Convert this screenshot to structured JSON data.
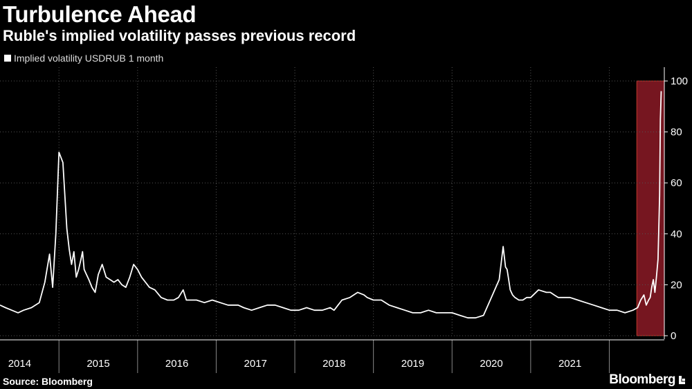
{
  "header": {
    "title": "Turbulence Ahead",
    "subtitle": "Ruble's implied volatility passes previous record"
  },
  "footer": {
    "source": "Source: Bloomberg",
    "brand": "Bloomberg"
  },
  "colors": {
    "background": "#000000",
    "line": "#ffffff",
    "highlight": "#8b1a26",
    "grid": "#555555"
  },
  "chart_data": {
    "type": "line",
    "legend": "Implied volatility USDRUB 1 month",
    "legend_position": "top-left",
    "y_axis_position": "right",
    "ylim": [
      0,
      100
    ],
    "yticks": [
      0,
      20,
      40,
      60,
      80,
      100
    ],
    "xlim": [
      2013.75,
      2022.2
    ],
    "xticks": [
      {
        "label": "2014",
        "x": 2014
      },
      {
        "label": "2015",
        "x": 2015
      },
      {
        "label": "2016",
        "x": 2016
      },
      {
        "label": "2017",
        "x": 2017
      },
      {
        "label": "2018",
        "x": 2018
      },
      {
        "label": "2019",
        "x": 2019
      },
      {
        "label": "2020",
        "x": 2020
      },
      {
        "label": "2021",
        "x": 2021
      }
    ],
    "grid": true,
    "highlight_range": [
      2021.85,
      2022.2
    ],
    "series": [
      {
        "name": "Implied volatility USDRUB 1 month",
        "x": [
          2013.75,
          2013.82,
          2013.9,
          2013.98,
          2014.05,
          2014.15,
          2014.25,
          2014.32,
          2014.38,
          2014.42,
          2014.46,
          2014.5,
          2014.55,
          2014.6,
          2014.63,
          2014.66,
          2014.69,
          2014.72,
          2014.75,
          2014.78,
          2014.8,
          2014.82,
          2014.85,
          2014.88,
          2014.92,
          2014.96,
          2015.0,
          2015.05,
          2015.1,
          2015.15,
          2015.2,
          2015.25,
          2015.3,
          2015.35,
          2015.4,
          2015.45,
          2015.5,
          2015.55,
          2015.6,
          2015.65,
          2015.72,
          2015.8,
          2015.88,
          2015.96,
          2016.02,
          2016.08,
          2016.12,
          2016.18,
          2016.25,
          2016.35,
          2016.45,
          2016.55,
          2016.65,
          2016.72,
          2016.78,
          2016.85,
          2016.95,
          2017.05,
          2017.15,
          2017.25,
          2017.35,
          2017.45,
          2017.55,
          2017.65,
          2017.75,
          2017.85,
          2017.95,
          2018.0,
          2018.05,
          2018.1,
          2018.2,
          2018.3,
          2018.38,
          2018.42,
          2018.5,
          2018.6,
          2018.7,
          2018.8,
          2018.9,
          2019.0,
          2019.1,
          2019.2,
          2019.3,
          2019.4,
          2019.5,
          2019.6,
          2019.7,
          2019.8,
          2019.9,
          2020.0,
          2020.1,
          2020.15,
          2020.18,
          2020.2,
          2020.22,
          2020.24,
          2020.27,
          2020.3,
          2020.35,
          2020.4,
          2020.45,
          2020.5,
          2020.6,
          2020.7,
          2020.75,
          2020.8,
          2020.85,
          2020.9,
          2021.0,
          2021.1,
          2021.2,
          2021.3,
          2021.4,
          2021.5,
          2021.6,
          2021.7,
          2021.8,
          2021.86,
          2021.9,
          2021.94,
          2021.97,
          2022.0,
          2022.02,
          2022.04,
          2022.06,
          2022.08,
          2022.1,
          2022.12,
          2022.14,
          2022.15,
          2022.16
        ],
        "values": [
          12,
          11,
          10,
          9,
          10,
          11,
          13,
          21,
          32,
          19,
          40,
          72,
          68,
          42,
          34,
          28,
          33,
          23,
          26,
          30,
          33,
          26,
          24,
          22,
          19,
          17,
          24,
          28,
          23,
          22,
          21,
          22,
          20,
          19,
          23,
          28,
          26,
          23,
          21,
          19,
          18,
          15,
          14,
          14,
          15,
          18,
          14,
          14,
          14,
          13,
          14,
          13,
          12,
          12,
          12,
          11,
          10,
          11,
          12,
          12,
          11,
          10,
          10,
          11,
          10,
          10,
          11,
          10,
          12,
          14,
          15,
          17,
          16,
          15,
          14,
          14,
          12,
          11,
          10,
          9,
          9,
          10,
          9,
          9,
          9,
          8,
          7,
          7,
          8,
          15,
          22,
          35,
          27,
          26,
          22,
          18,
          16,
          15,
          14,
          14,
          15,
          15,
          18,
          17,
          17,
          16,
          15,
          15,
          15,
          14,
          13,
          12,
          11,
          10,
          10,
          9,
          10,
          11,
          14,
          16,
          12,
          14,
          15,
          19,
          22,
          17,
          23,
          30,
          55,
          85,
          96
        ]
      }
    ]
  }
}
